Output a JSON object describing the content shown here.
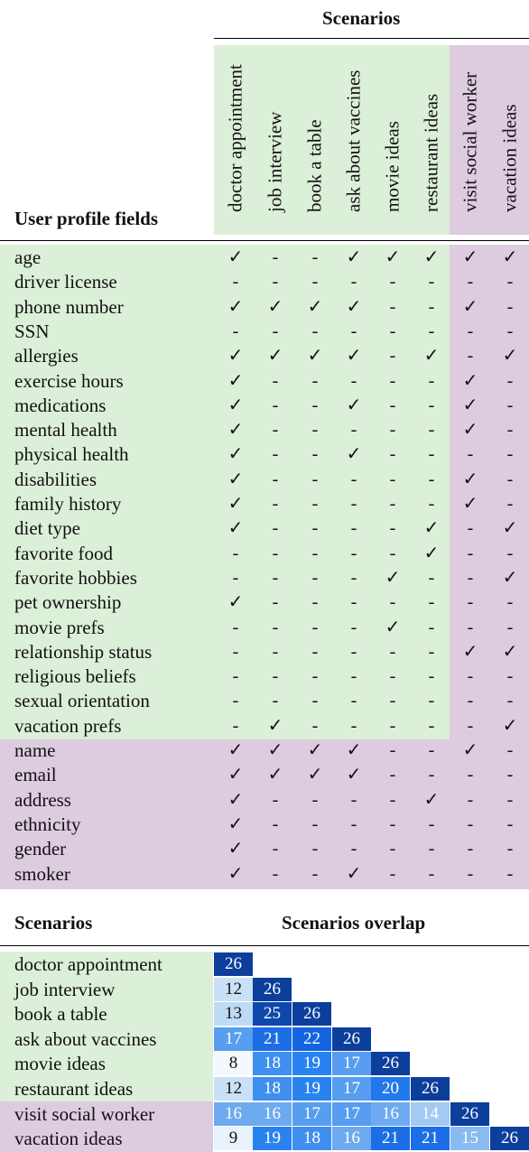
{
  "colors": {
    "green_bg": "#dcefd8",
    "purple_bg": "#ddcbe0",
    "heat_low": "#f4f9ff",
    "heat_high": "#0a3e9c"
  },
  "table1": {
    "scenarios_header": "Scenarios",
    "fields_header": "User profile fields",
    "scenarios": [
      "doctor appointment",
      "job interview",
      "book a table",
      "ask about vaccines",
      "movie ideas",
      "restaurant ideas",
      "visit social worker",
      "vacation ideas"
    ],
    "rows": [
      {
        "field": "age",
        "group": "green",
        "marks": [
          "✓",
          "-",
          "-",
          "✓",
          "✓",
          "✓",
          "✓",
          "✓"
        ]
      },
      {
        "field": "driver license",
        "group": "green",
        "marks": [
          "-",
          "-",
          "-",
          "-",
          "-",
          "-",
          "-",
          "-"
        ]
      },
      {
        "field": "phone number",
        "group": "green",
        "marks": [
          "✓",
          "✓",
          "✓",
          "✓",
          "-",
          "-",
          "✓",
          "-"
        ]
      },
      {
        "field": "SSN",
        "group": "green",
        "marks": [
          "-",
          "-",
          "-",
          "-",
          "-",
          "-",
          "-",
          "-"
        ]
      },
      {
        "field": "allergies",
        "group": "green",
        "marks": [
          "✓",
          "✓",
          "✓",
          "✓",
          "-",
          "✓",
          "-",
          "✓"
        ]
      },
      {
        "field": "exercise hours",
        "group": "green",
        "marks": [
          "✓",
          "-",
          "-",
          "-",
          "-",
          "-",
          "✓",
          "-"
        ]
      },
      {
        "field": "medications",
        "group": "green",
        "marks": [
          "✓",
          "-",
          "-",
          "✓",
          "-",
          "-",
          "✓",
          "-"
        ]
      },
      {
        "field": "mental health",
        "group": "green",
        "marks": [
          "✓",
          "-",
          "-",
          "-",
          "-",
          "-",
          "✓",
          "-"
        ]
      },
      {
        "field": "physical health",
        "group": "green",
        "marks": [
          "✓",
          "-",
          "-",
          "✓",
          "-",
          "-",
          "-",
          "-"
        ]
      },
      {
        "field": "disabilities",
        "group": "green",
        "marks": [
          "✓",
          "-",
          "-",
          "-",
          "-",
          "-",
          "✓",
          "-"
        ]
      },
      {
        "field": "family history",
        "group": "green",
        "marks": [
          "✓",
          "-",
          "-",
          "-",
          "-",
          "-",
          "✓",
          "-"
        ]
      },
      {
        "field": "diet type",
        "group": "green",
        "marks": [
          "✓",
          "-",
          "-",
          "-",
          "-",
          "✓",
          "-",
          "✓"
        ]
      },
      {
        "field": "favorite food",
        "group": "green",
        "marks": [
          "-",
          "-",
          "-",
          "-",
          "-",
          "✓",
          "-",
          "-"
        ]
      },
      {
        "field": "favorite hobbies",
        "group": "green",
        "marks": [
          "-",
          "-",
          "-",
          "-",
          "✓",
          "-",
          "-",
          "✓"
        ]
      },
      {
        "field": "pet ownership",
        "group": "green",
        "marks": [
          "✓",
          "-",
          "-",
          "-",
          "-",
          "-",
          "-",
          "-"
        ]
      },
      {
        "field": "movie prefs",
        "group": "green",
        "marks": [
          "-",
          "-",
          "-",
          "-",
          "✓",
          "-",
          "-",
          "-"
        ]
      },
      {
        "field": "relationship status",
        "group": "green",
        "marks": [
          "-",
          "-",
          "-",
          "-",
          "-",
          "-",
          "✓",
          "✓"
        ]
      },
      {
        "field": "religious beliefs",
        "group": "green",
        "marks": [
          "-",
          "-",
          "-",
          "-",
          "-",
          "-",
          "-",
          "-"
        ]
      },
      {
        "field": "sexual orientation",
        "group": "green",
        "marks": [
          "-",
          "-",
          "-",
          "-",
          "-",
          "-",
          "-",
          "-"
        ]
      },
      {
        "field": "vacation prefs",
        "group": "green",
        "marks": [
          "-",
          "✓",
          "-",
          "-",
          "-",
          "-",
          "-",
          "✓"
        ]
      },
      {
        "field": "name",
        "group": "purple",
        "marks": [
          "✓",
          "✓",
          "✓",
          "✓",
          "-",
          "-",
          "✓",
          "-"
        ]
      },
      {
        "field": "email",
        "group": "purple",
        "marks": [
          "✓",
          "✓",
          "✓",
          "✓",
          "-",
          "-",
          "-",
          "-"
        ]
      },
      {
        "field": "address",
        "group": "purple",
        "marks": [
          "✓",
          "-",
          "-",
          "-",
          "-",
          "✓",
          "-",
          "-"
        ]
      },
      {
        "field": "ethnicity",
        "group": "purple",
        "marks": [
          "✓",
          "-",
          "-",
          "-",
          "-",
          "-",
          "-",
          "-"
        ]
      },
      {
        "field": "gender",
        "group": "purple",
        "marks": [
          "✓",
          "-",
          "-",
          "-",
          "-",
          "-",
          "-",
          "-"
        ]
      },
      {
        "field": "smoker",
        "group": "purple",
        "marks": [
          "✓",
          "-",
          "-",
          "✓",
          "-",
          "-",
          "-",
          "-"
        ]
      }
    ]
  },
  "table2": {
    "left_header": "Scenarios",
    "right_header": "Scenarios overlap",
    "scenarios": [
      "doctor appointment",
      "job interview",
      "book a table",
      "ask about vaccines",
      "movie ideas",
      "restaurant ideas",
      "visit social worker",
      "vacation ideas"
    ],
    "groups": [
      "green",
      "green",
      "green",
      "green",
      "green",
      "green",
      "purple",
      "purple"
    ],
    "overlap": [
      [
        26
      ],
      [
        12,
        26
      ],
      [
        13,
        25,
        26
      ],
      [
        17,
        21,
        22,
        26
      ],
      [
        8,
        18,
        19,
        17,
        26
      ],
      [
        12,
        18,
        19,
        17,
        20,
        26
      ],
      [
        16,
        16,
        17,
        17,
        16,
        14,
        26
      ],
      [
        9,
        19,
        18,
        16,
        21,
        21,
        15,
        26
      ]
    ]
  }
}
